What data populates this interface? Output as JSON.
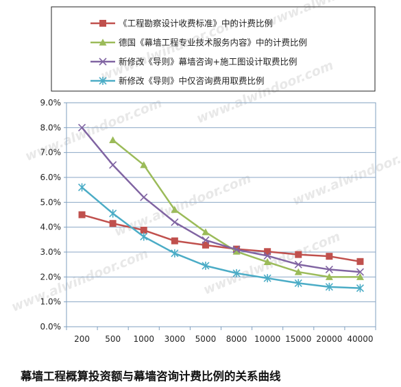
{
  "caption": "幕墙工程概算投资额与幕墙咨询计费比例的关系曲线",
  "watermark": "www.alwindoor.com",
  "chart_data": {
    "type": "line",
    "title": "",
    "xlabel": "",
    "ylabel": "",
    "categories": [
      "200",
      "500",
      "1000",
      "3000",
      "5000",
      "8000",
      "10000",
      "15000",
      "20000",
      "40000"
    ],
    "ylim": [
      0,
      9
    ],
    "yticks": [
      "0.0%",
      "1.0%",
      "2.0%",
      "3.0%",
      "4.0%",
      "5.0%",
      "6.0%",
      "7.0%",
      "8.0%",
      "9.0%"
    ],
    "grid": "horizontal",
    "legend_position": "top",
    "series": [
      {
        "name": "《工程勘察设计收费标准》中的计费比例",
        "color": "#c0504d",
        "marker": "square",
        "values": [
          4.5,
          4.15,
          3.88,
          3.45,
          3.28,
          3.12,
          3.02,
          2.9,
          2.83,
          2.62
        ]
      },
      {
        "name": "德国《幕墙工程专业技术服务内容》中的计费比例",
        "color": "#9bbb59",
        "marker": "triangle",
        "values": [
          null,
          7.5,
          6.5,
          4.7,
          3.8,
          3.02,
          2.6,
          2.2,
          2.0,
          2.0
        ]
      },
      {
        "name": "新修改《导则》幕墙咨询+施工图设计取费比例",
        "color": "#8064a2",
        "marker": "x",
        "values": [
          8.0,
          6.5,
          5.2,
          4.2,
          3.48,
          3.1,
          2.85,
          2.5,
          2.3,
          2.2
        ]
      },
      {
        "name": "新修改《导则》中仅咨询费用取费比例",
        "color": "#4bacc6",
        "marker": "star",
        "values": [
          5.6,
          4.55,
          3.62,
          2.95,
          2.45,
          2.15,
          1.95,
          1.75,
          1.6,
          1.55
        ]
      }
    ]
  }
}
